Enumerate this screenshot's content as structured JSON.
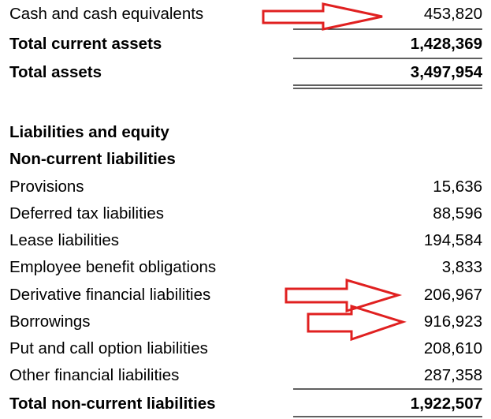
{
  "rows": [
    {
      "label": "Cash and cash equivalents",
      "value": "453,820"
    },
    {
      "label": "Total current assets",
      "value": "1,428,369"
    },
    {
      "label": "Total assets",
      "value": "3,497,954"
    },
    {
      "label": "Liabilities and equity"
    },
    {
      "label": "Non-current liabilities"
    },
    {
      "label": "Provisions",
      "value": "15,636"
    },
    {
      "label": "Deferred tax liabilities",
      "value": "88,596"
    },
    {
      "label": "Lease liabilities",
      "value": "194,584"
    },
    {
      "label": "Employee benefit obligations",
      "value": "3,833"
    },
    {
      "label": "Derivative financial liabilities",
      "value": "206,967"
    },
    {
      "label": "Borrowings",
      "value": "916,923"
    },
    {
      "label": "Put and call option liabilities",
      "value": "208,610"
    },
    {
      "label": "Other financial liabilities",
      "value": "287,358"
    },
    {
      "label": "Total non-current liabilities",
      "value": "1,922,507"
    }
  ]
}
